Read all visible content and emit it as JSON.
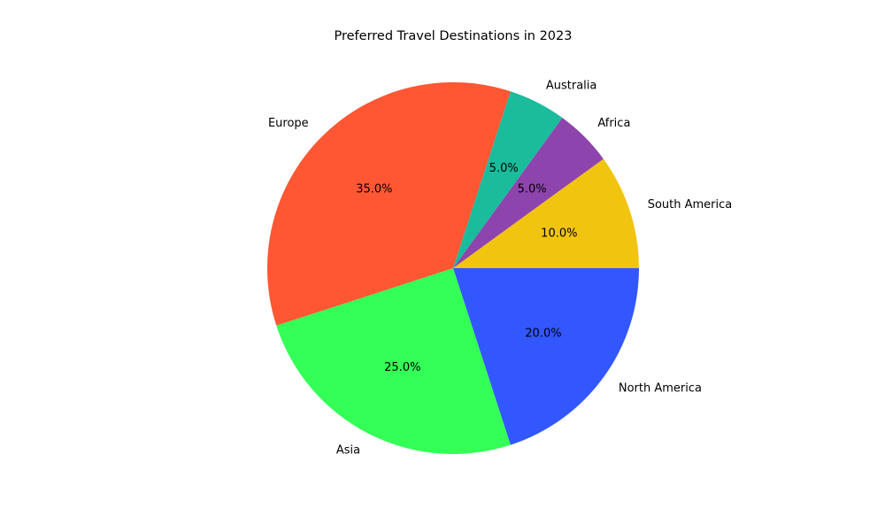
{
  "chart_data": {
    "type": "pie",
    "title": "Preferred Travel Destinations in 2023",
    "categories": [
      "North America",
      "Asia",
      "Europe",
      "Australia",
      "Africa",
      "South America"
    ],
    "values": [
      20,
      25,
      35,
      5,
      5,
      10
    ],
    "percent_labels": [
      "20.0%",
      "25.0%",
      "35.0%",
      "5.0%",
      "5.0%",
      "10.0%"
    ],
    "colors": [
      "#3357ff",
      "#33ff57",
      "#ff5733",
      "#1abc9c",
      "#8e44ad",
      "#f1c40f"
    ],
    "start_angle_deg": 0,
    "direction": "clockwise",
    "legend": "none"
  }
}
